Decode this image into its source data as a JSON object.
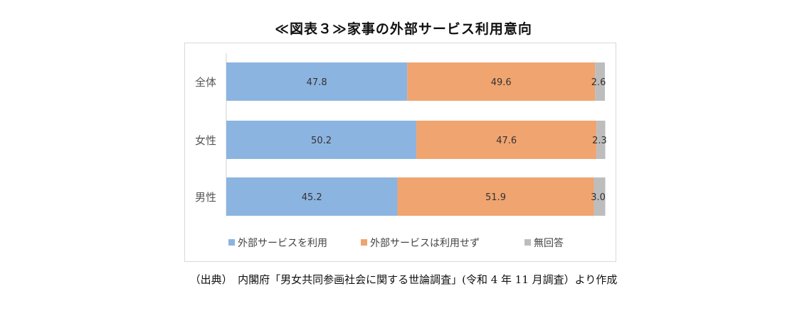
{
  "title": "≪図表３≫家事の外部サービス利用意向",
  "source": "（出典）　内閣府「男女共同参画社会に関する世論調査」(令和 4 年 11 月調査）より作成",
  "chart_data": {
    "type": "bar",
    "orientation": "horizontal",
    "stacked": true,
    "normalized": true,
    "categories": [
      "全体",
      "女性",
      "男性"
    ],
    "series": [
      {
        "name": "外部サービスを利用",
        "values": [
          47.8,
          50.2,
          45.2
        ],
        "color": "#8cb4e0"
      },
      {
        "name": "外部サービスは利用せず",
        "values": [
          49.6,
          47.6,
          51.9
        ],
        "color": "#f0a470"
      },
      {
        "name": "無回答",
        "values": [
          2.6,
          2.3,
          3.0
        ],
        "color": "#bdbdbd"
      }
    ],
    "xlim": [
      0,
      100
    ],
    "legend": "bottom",
    "grid": false
  }
}
